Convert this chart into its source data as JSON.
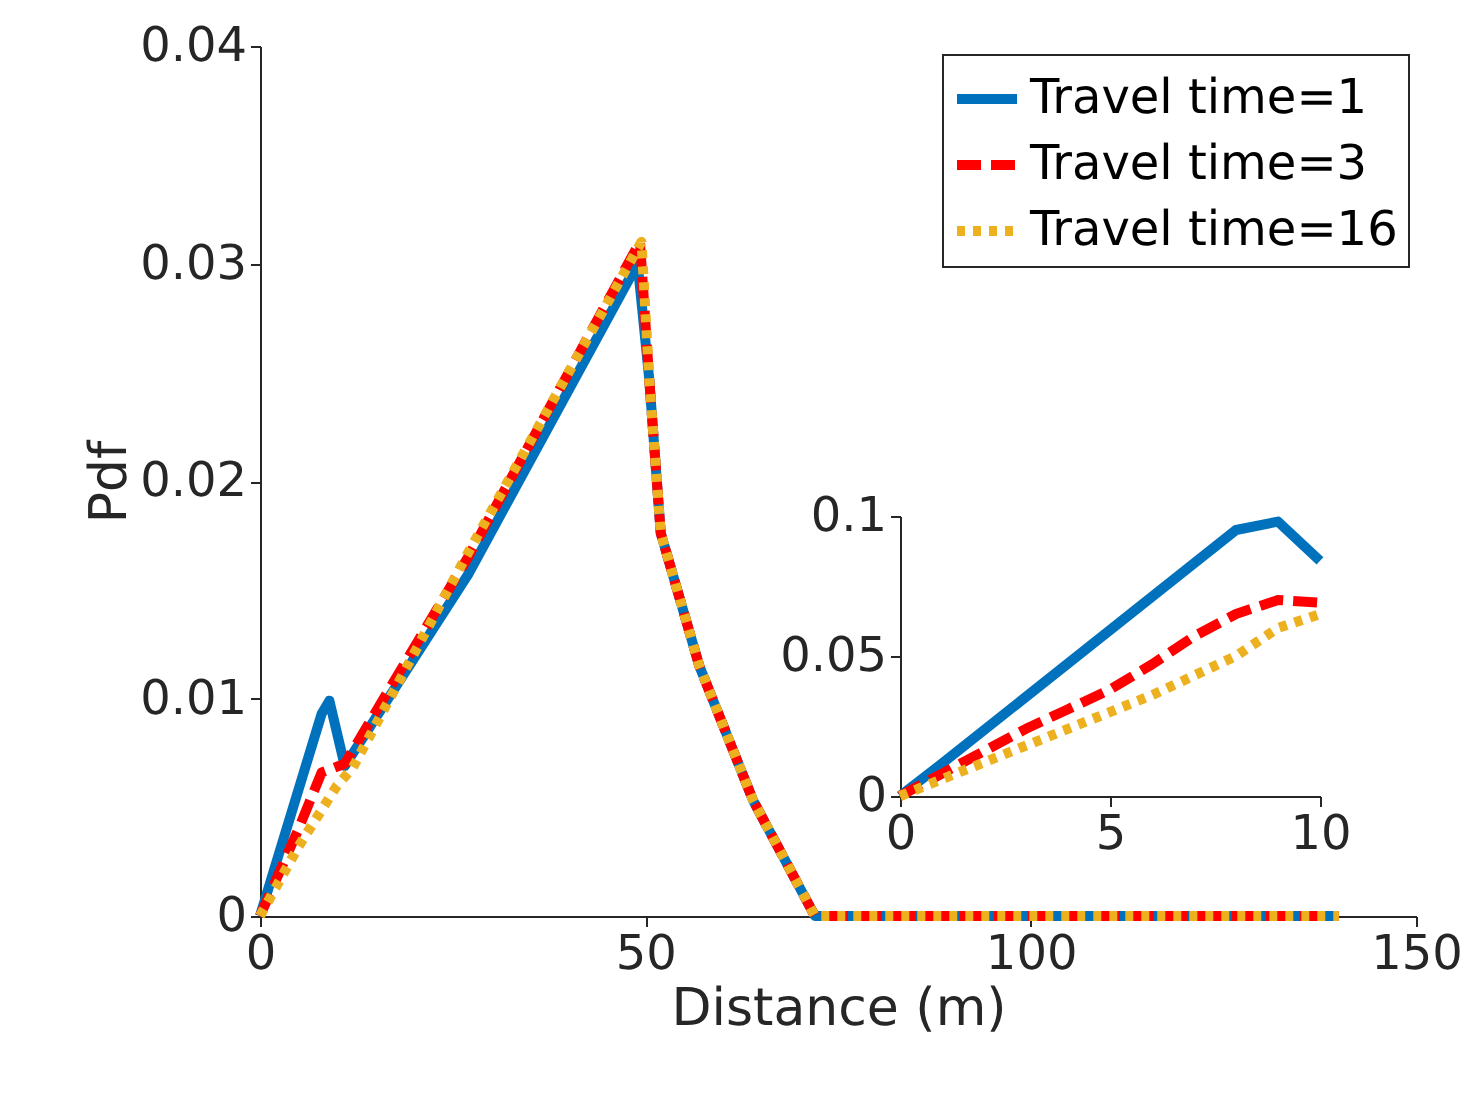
{
  "chart_data": [
    {
      "type": "line",
      "xlabel": "Distance (m)",
      "ylabel": "Pdf",
      "xlim": [
        0,
        150
      ],
      "ylim": [
        0,
        0.04
      ],
      "xticks": [
        0,
        50,
        100,
        150
      ],
      "yticks": [
        {
          "value": 0,
          "label": "0"
        },
        0.01,
        0.02,
        0.03,
        0.04
      ],
      "grid": false,
      "legend": "top right",
      "series": [
        {
          "name": "Travel time=1",
          "color": "#0072bd",
          "line_style": "solid",
          "x": [
            0,
            8,
            9,
            11,
            27,
            49,
            50.5,
            52,
            57,
            64,
            72,
            140
          ],
          "values": [
            0,
            0.0093,
            0.0099,
            0.0069,
            0.0157,
            0.03,
            0.0247,
            0.0176,
            0.0115,
            0.0053,
            0,
            0
          ]
        },
        {
          "name": "Travel time=3",
          "color": "#ff0000",
          "line_style": "dashed",
          "x": [
            0,
            5,
            8,
            11,
            27,
            49.3,
            50.5,
            52,
            57,
            64,
            72,
            140
          ],
          "values": [
            0,
            0.004,
            0.0066,
            0.007,
            0.0165,
            0.031,
            0.0247,
            0.0176,
            0.0115,
            0.0053,
            0,
            0
          ]
        },
        {
          "name": "Travel time=16",
          "color": "#edb120",
          "line_style": "dotted",
          "x": [
            0,
            5,
            10,
            12,
            27,
            49.5,
            50.5,
            52,
            57,
            64,
            72,
            140
          ],
          "values": [
            0,
            0.0032,
            0.006,
            0.0068,
            0.0167,
            0.031,
            0.0247,
            0.0176,
            0.0115,
            0.0053,
            0,
            0
          ]
        }
      ]
    },
    {
      "type": "line",
      "xlim": [
        0,
        10
      ],
      "ylim": [
        0,
        0.1
      ],
      "xticks": [
        0,
        5,
        10
      ],
      "yticks": [
        0,
        0.05,
        0.1
      ],
      "grid": false,
      "series": [
        {
          "color": "#0072bd",
          "line_style": "solid",
          "x": [
            0,
            1,
            8,
            9,
            10
          ],
          "values": [
            0,
            0.0116,
            0.095,
            0.098,
            0.084
          ]
        },
        {
          "color": "#ff0000",
          "line_style": "dashed",
          "x": [
            0,
            1,
            2,
            3,
            4,
            5,
            6,
            7,
            8,
            9,
            10
          ],
          "values": [
            0,
            0.008,
            0.016,
            0.024,
            0.031,
            0.038,
            0.047,
            0.057,
            0.065,
            0.07,
            0.069
          ]
        },
        {
          "color": "#edb120",
          "line_style": "dotted",
          "x": [
            0,
            2,
            4,
            6,
            8,
            9,
            10
          ],
          "values": [
            0,
            0.012,
            0.024,
            0.036,
            0.05,
            0.06,
            0.065
          ]
        }
      ]
    }
  ]
}
